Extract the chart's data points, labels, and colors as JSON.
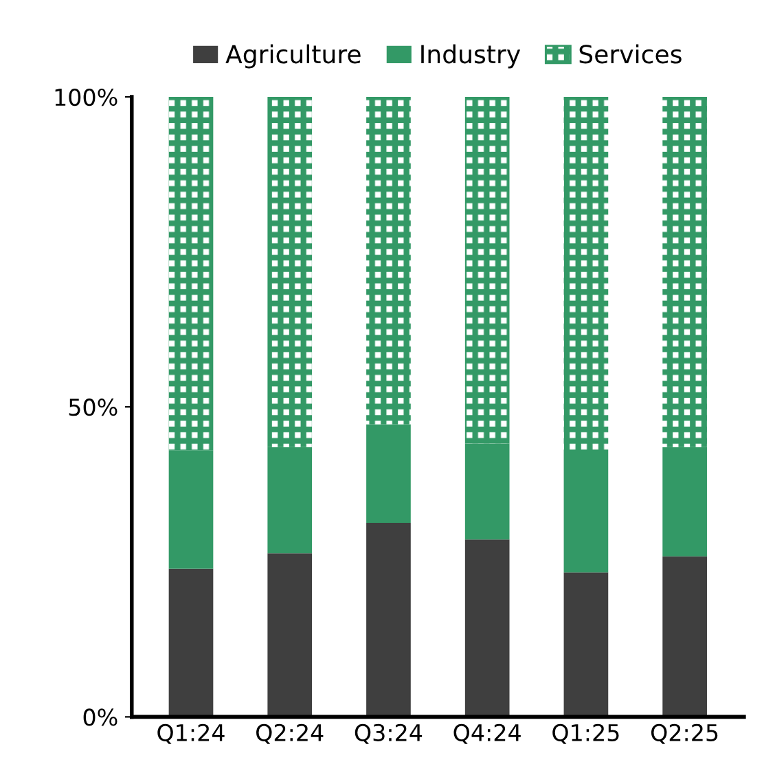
{
  "chart_data": {
    "type": "bar",
    "stacked": true,
    "categories": [
      "Q1:24",
      "Q2:24",
      "Q3:24",
      "Q4:24",
      "Q1:25",
      "Q2:25"
    ],
    "series": [
      {
        "name": "Agriculture",
        "color": "#3f3f3f",
        "values": [
          23.9,
          26.4,
          31.3,
          28.6,
          23.3,
          25.9
        ]
      },
      {
        "name": "Industry",
        "color": "#339966",
        "values": [
          19.1,
          17.1,
          15.9,
          15.5,
          19.3,
          17.6
        ]
      },
      {
        "name": "Services",
        "color": "#339966",
        "values": [
          57.0,
          56.5,
          52.8,
          55.9,
          57.4,
          56.5
        ]
      }
    ],
    "ylim": [
      0,
      100
    ],
    "yticks": [
      {
        "value": 0,
        "label": "0%"
      },
      {
        "value": 50,
        "label": "50%"
      },
      {
        "value": 100,
        "label": "100%"
      }
    ],
    "grid": false,
    "legend": "top"
  }
}
